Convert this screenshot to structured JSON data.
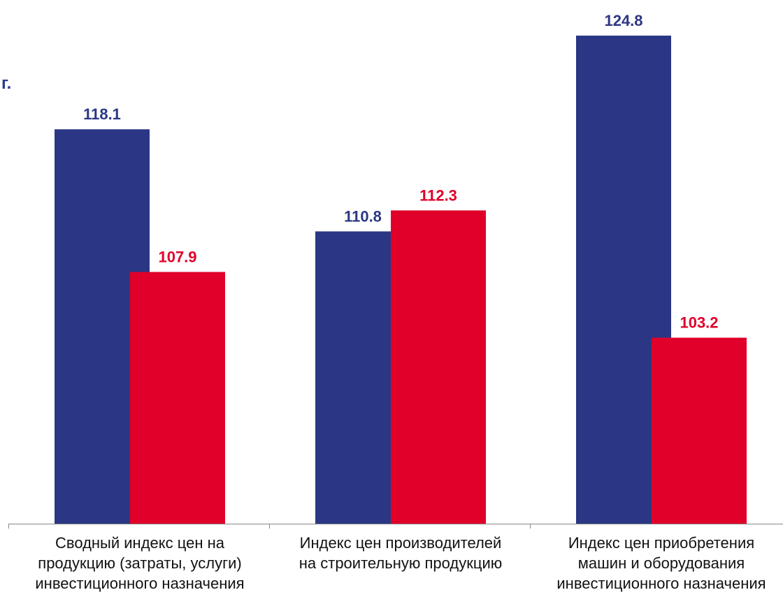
{
  "legend_fragment": "г.",
  "chart_data": {
    "type": "bar",
    "categories": [
      "Сводный индекс цен на\nпродукцию (затраты, услуги)\nинвестиционного назначения",
      "Индекс цен производителей\nна строительную продукцию",
      "Индекс цен приобретения\nмашин и оборудования\nинвестиционного назначения"
    ],
    "series": [
      {
        "color": "#2b3784",
        "values": [
          118.1,
          110.8,
          124.8
        ]
      },
      {
        "color": "#e0002a",
        "values": [
          107.9,
          112.3,
          103.2
        ]
      }
    ],
    "value_labels": {
      "series_0": [
        "118.1",
        "110.8",
        "124.8"
      ],
      "series_1": [
        "107.9",
        "112.3",
        "103.2"
      ]
    },
    "label_colors": [
      "#2b3784",
      "#e0002a"
    ],
    "ylim": [
      89.9,
      124.8
    ],
    "xlabel": "",
    "ylabel": "",
    "grid": false,
    "axis_color": "#888888"
  }
}
